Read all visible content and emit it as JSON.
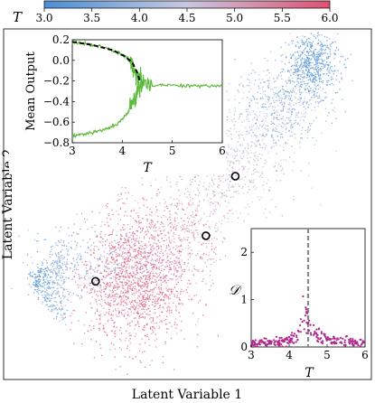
{
  "chart_data": [
    {
      "type": "scatter",
      "xlabel": "Latent Variable 1",
      "ylabel": "Latent Variable 2",
      "colorbar": {
        "label": "T",
        "range": [
          3.0,
          6.0
        ],
        "ticks": [
          "3.0",
          "3.5",
          "4.0",
          "4.5",
          "5.0",
          "5.5",
          "6.0"
        ],
        "colors": [
          "#4a8fd6",
          "#c8c8e0",
          "#e05070"
        ],
        "location": "top"
      },
      "clusters": [
        {
          "T": 3.0,
          "description_free": true,
          "cx": 0.08,
          "cy": 0.28,
          "sx": 0.03,
          "sy": 0.05,
          "n": 380,
          "shape": "fan"
        },
        {
          "T": 3.6,
          "cx": 0.22,
          "cy": 0.33,
          "sx": 0.08,
          "sy": 0.06,
          "n": 250,
          "shape": "blob"
        },
        {
          "T": 5.8,
          "cx": 0.36,
          "cy": 0.28,
          "sx": 0.07,
          "sy": 0.09,
          "n": 1500,
          "shape": "blob"
        },
        {
          "T": 5.2,
          "cx": 0.48,
          "cy": 0.42,
          "sx": 0.07,
          "sy": 0.08,
          "n": 500,
          "shape": "blob"
        },
        {
          "T": 4.5,
          "cx": 0.62,
          "cy": 0.62,
          "sx": 0.08,
          "sy": 0.09,
          "n": 600,
          "shape": "blob"
        },
        {
          "T": 3.8,
          "cx": 0.75,
          "cy": 0.78,
          "sx": 0.06,
          "sy": 0.06,
          "n": 500,
          "shape": "blob"
        },
        {
          "T": 3.1,
          "cx": 0.84,
          "cy": 0.9,
          "sx": 0.035,
          "sy": 0.045,
          "n": 600,
          "shape": "blob"
        }
      ],
      "circled_points": [
        [
          0.25,
          0.28
        ],
        [
          0.55,
          0.41
        ],
        [
          0.63,
          0.58
        ]
      ]
    },
    {
      "type": "line",
      "xlabel": "T",
      "ylabel": "Mean Output",
      "xlim": [
        3,
        6
      ],
      "ylim": [
        -0.8,
        0.2
      ],
      "xticks": [
        "3",
        "4",
        "5",
        "6"
      ],
      "yticks": [
        "0.2",
        "0.0",
        "−0.2",
        "−0.4",
        "−0.6",
        "−0.8"
      ],
      "series": [
        {
          "color": "#5aba3a",
          "points": [
            [
              3.0,
              0.18
            ],
            [
              3.3,
              0.16
            ],
            [
              3.6,
              0.13
            ],
            [
              3.9,
              0.08
            ],
            [
              4.1,
              0.02
            ],
            [
              4.2,
              -0.05
            ],
            [
              4.3,
              -0.15
            ],
            [
              4.4,
              -0.2
            ],
            [
              4.6,
              -0.24
            ],
            [
              5.0,
              -0.24
            ],
            [
              5.5,
              -0.25
            ],
            [
              6.0,
              -0.25
            ]
          ]
        },
        {
          "color": "#5aba3a",
          "points": [
            [
              3.0,
              -0.73
            ],
            [
              3.3,
              -0.71
            ],
            [
              3.6,
              -0.68
            ],
            [
              3.9,
              -0.62
            ],
            [
              4.1,
              -0.52
            ],
            [
              4.2,
              -0.42
            ],
            [
              4.3,
              -0.3
            ],
            [
              4.4,
              -0.22
            ]
          ]
        },
        {
          "color": "#000000",
          "style": "dashed",
          "points": [
            [
              3.0,
              0.18
            ],
            [
              3.4,
              0.15
            ],
            [
              3.8,
              0.1
            ],
            [
              4.05,
              0.04
            ],
            [
              4.2,
              -0.02
            ],
            [
              4.3,
              -0.12
            ],
            [
              4.35,
              -0.2
            ]
          ]
        }
      ]
    },
    {
      "type": "scatter",
      "xlabel": "T",
      "ylabel": "𝒟",
      "xlim": [
        3,
        6
      ],
      "ylim": [
        0,
        2.5
      ],
      "xticks": [
        "3",
        "4",
        "5",
        "6"
      ],
      "yticks": [
        "0",
        "1",
        "2"
      ],
      "vline": {
        "x": 4.5,
        "color": "#888888",
        "style": "dashed"
      },
      "color": "#b02a8f"
    }
  ]
}
